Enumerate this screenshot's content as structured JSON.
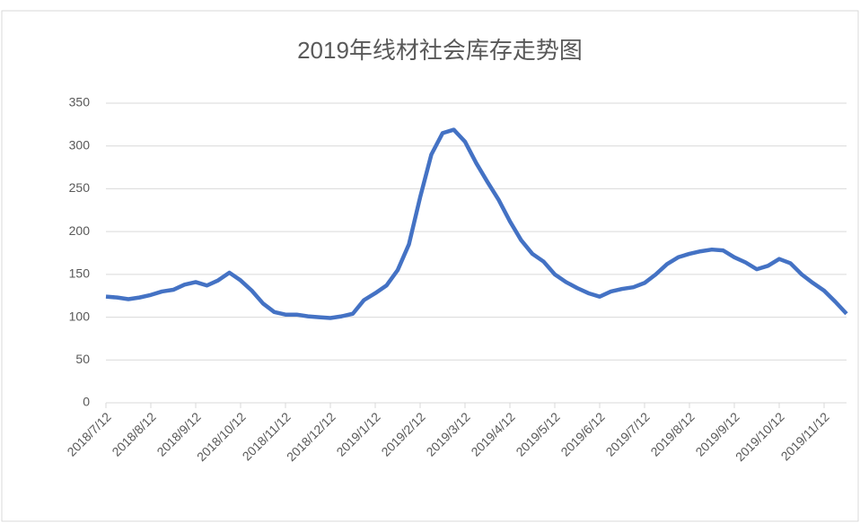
{
  "chart_data": {
    "type": "line",
    "title": "2019年线材社会库存走势图",
    "categories": [
      "2018/7/12",
      null,
      null,
      null,
      "2018/8/12",
      null,
      null,
      null,
      "2018/9/12",
      null,
      null,
      null,
      "2018/10/12",
      null,
      null,
      null,
      "2018/11/12",
      null,
      null,
      null,
      "2018/12/12",
      null,
      null,
      null,
      "2019/1/12",
      null,
      null,
      null,
      "2019/2/12",
      null,
      null,
      null,
      "2019/3/12",
      null,
      null,
      null,
      "2019/4/12",
      null,
      null,
      null,
      "2019/5/12",
      null,
      null,
      null,
      "2019/6/12",
      null,
      null,
      null,
      "2019/7/12",
      null,
      null,
      null,
      "2019/8/12",
      null,
      null,
      null,
      "2019/9/12",
      null,
      null,
      null,
      "2019/10/12",
      null,
      null,
      null,
      "2019/11/12",
      null,
      null
    ],
    "values": [
      124,
      123,
      121,
      123,
      126,
      130,
      132,
      138,
      141,
      137,
      143,
      152,
      143,
      131,
      116,
      106,
      103,
      103,
      101,
      100,
      99,
      101,
      104,
      120,
      128,
      137,
      155,
      185,
      240,
      290,
      315,
      319,
      305,
      280,
      258,
      237,
      212,
      190,
      174,
      165,
      150,
      141,
      134,
      128,
      124,
      130,
      133,
      135,
      140,
      150,
      162,
      170,
      174,
      177,
      179,
      178,
      170,
      164,
      156,
      160,
      168,
      163,
      150,
      140,
      131,
      118,
      104
    ],
    "color": "#4472c4",
    "ylim": [
      0,
      350
    ],
    "yticks": [
      0,
      50,
      100,
      150,
      200,
      250,
      300,
      350
    ],
    "grid": true
  }
}
